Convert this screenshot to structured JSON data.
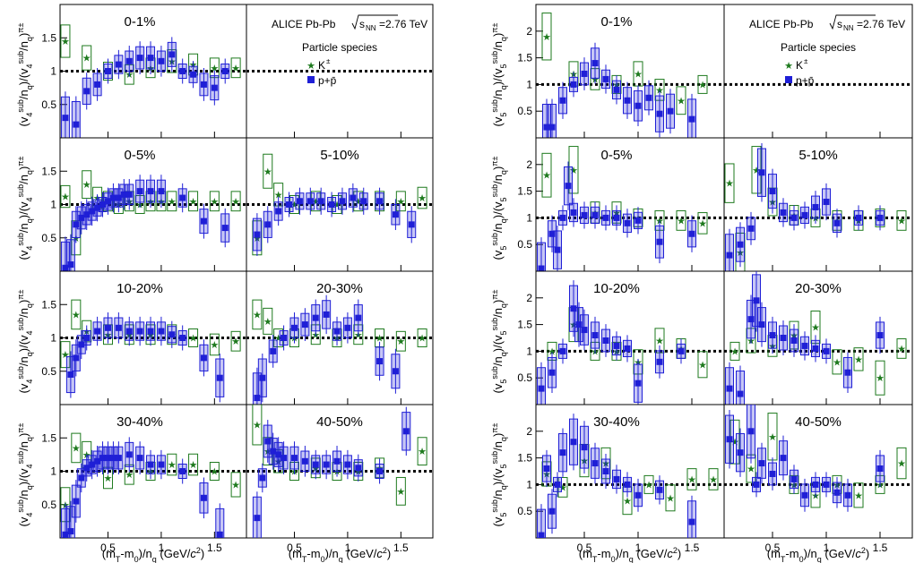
{
  "figure": {
    "header_text": "ALICE Pb-Pb",
    "energy_prefix": "s",
    "energy_sub": "NN",
    "energy_value": "=2.76 TeV",
    "legend_title": "Particle species",
    "legend_kaon": "K",
    "legend_kaon_sup": "±",
    "legend_proton": "p+p̄",
    "colors": {
      "kaon": "#1e7a1e",
      "proton": "#1f1fd6",
      "ref": "#000000"
    }
  },
  "chart_data": [
    {
      "type": "scatter",
      "harmonic": "4",
      "ylabel_html": "(v4sub/nq)/(v4sub/nq)π±",
      "xlabel": "(mT-m0)/nq (GeV/c2)",
      "xlim": [
        0.05,
        1.8
      ],
      "ylim": [
        0,
        2
      ],
      "xticks": [
        0.5,
        1,
        1.5
      ],
      "yticks": [
        0.5,
        1,
        1.5
      ],
      "panels": [
        {
          "label": "0-1%",
          "kaon": {
            "x": [
              0.1,
              0.3,
              0.5,
              0.7,
              0.9,
              1.1,
              1.3,
              1.5,
              1.7
            ],
            "y": [
              1.45,
              1.2,
              1.0,
              0.95,
              1.05,
              1.15,
              1.1,
              1.05,
              1.05
            ]
          },
          "proton": {
            "x": [
              0.1,
              0.2,
              0.3,
              0.4,
              0.5,
              0.6,
              0.7,
              0.8,
              0.9,
              1.0,
              1.1,
              1.2,
              1.3,
              1.4,
              1.5,
              1.6
            ],
            "y": [
              0.3,
              0.2,
              0.7,
              0.8,
              1.0,
              1.1,
              1.15,
              1.2,
              1.2,
              1.15,
              1.25,
              1.0,
              0.95,
              0.8,
              0.75,
              1.0
            ]
          }
        },
        {
          "label": "",
          "kaon": {
            "x": [],
            "y": []
          },
          "proton": {
            "x": [],
            "y": []
          }
        },
        {
          "label": "0-5%",
          "kaon": {
            "x": [
              0.1,
              0.2,
              0.3,
              0.4,
              0.5,
              0.6,
              0.7,
              0.8,
              0.9,
              1.0,
              1.1,
              1.3,
              1.5,
              1.7
            ],
            "y": [
              1.12,
              0.5,
              1.3,
              1.1,
              1.05,
              1.0,
              1.05,
              1.0,
              1.05,
              1.05,
              1.05,
              1.05,
              1.05,
              1.05
            ]
          },
          "proton": {
            "x": [
              0.1,
              0.15,
              0.2,
              0.25,
              0.3,
              0.35,
              0.4,
              0.45,
              0.5,
              0.55,
              0.6,
              0.65,
              0.7,
              0.8,
              0.9,
              1.0,
              1.2,
              1.4,
              1.6
            ],
            "y": [
              0.05,
              0.1,
              0.7,
              0.8,
              0.85,
              0.9,
              0.95,
              1.0,
              1.05,
              1.1,
              1.1,
              1.15,
              1.15,
              1.2,
              1.2,
              1.2,
              1.1,
              0.75,
              0.65
            ]
          }
        },
        {
          "label": "5-10%",
          "kaon": {
            "x": [
              0.15,
              0.25,
              0.35,
              0.5,
              0.7,
              0.9,
              1.1,
              1.3,
              1.5,
              1.7
            ],
            "y": [
              0.5,
              1.5,
              1.15,
              1.0,
              1.05,
              1.0,
              1.05,
              1.05,
              1.05,
              1.1
            ]
          },
          "proton": {
            "x": [
              0.15,
              0.25,
              0.35,
              0.45,
              0.55,
              0.65,
              0.75,
              0.85,
              0.95,
              1.05,
              1.15,
              1.3,
              1.45,
              1.6
            ],
            "y": [
              0.55,
              0.7,
              0.9,
              1.0,
              1.05,
              1.05,
              1.05,
              1.0,
              1.05,
              1.1,
              1.05,
              1.05,
              0.85,
              0.7
            ]
          }
        },
        {
          "label": "10-20%",
          "kaon": {
            "x": [
              0.1,
              0.2,
              0.3,
              0.5,
              0.7,
              0.9,
              1.1,
              1.3,
              1.5,
              1.7
            ],
            "y": [
              0.75,
              1.35,
              1.1,
              1.05,
              1.05,
              1.05,
              1.05,
              1.0,
              0.9,
              0.95
            ]
          },
          "proton": {
            "x": [
              0.15,
              0.2,
              0.25,
              0.3,
              0.4,
              0.5,
              0.6,
              0.7,
              0.8,
              0.9,
              1.0,
              1.1,
              1.2,
              1.4,
              1.55
            ],
            "y": [
              0.45,
              0.7,
              0.9,
              1.0,
              1.1,
              1.15,
              1.15,
              1.1,
              1.1,
              1.1,
              1.1,
              1.05,
              1.0,
              0.7,
              0.4
            ]
          }
        },
        {
          "label": "20-30%",
          "kaon": {
            "x": [
              0.15,
              0.25,
              0.35,
              0.5,
              0.7,
              0.9,
              1.1,
              1.3,
              1.5,
              1.7
            ],
            "y": [
              1.35,
              1.25,
              1.0,
              1.0,
              1.05,
              1.0,
              1.05,
              1.0,
              0.95,
              1.0
            ]
          },
          "proton": {
            "x": [
              0.15,
              0.2,
              0.3,
              0.4,
              0.5,
              0.6,
              0.7,
              0.8,
              0.9,
              1.0,
              1.1,
              1.3,
              1.45
            ],
            "y": [
              0.1,
              0.4,
              0.8,
              1.0,
              1.15,
              1.2,
              1.3,
              1.35,
              1.1,
              1.15,
              1.3,
              0.65,
              0.5
            ]
          }
        },
        {
          "label": "30-40%",
          "kaon": {
            "x": [
              0.1,
              0.2,
              0.3,
              0.5,
              0.7,
              0.9,
              1.1,
              1.3,
              1.5,
              1.7
            ],
            "y": [
              0.5,
              1.35,
              1.25,
              0.9,
              0.95,
              1.0,
              1.1,
              1.1,
              1.0,
              0.8
            ]
          },
          "proton": {
            "x": [
              0.1,
              0.15,
              0.2,
              0.25,
              0.3,
              0.35,
              0.4,
              0.45,
              0.5,
              0.55,
              0.6,
              0.7,
              0.8,
              0.9,
              1.0,
              1.2,
              1.4,
              1.55
            ],
            "y": [
              0.05,
              0.1,
              0.55,
              0.9,
              1.05,
              1.1,
              1.15,
              1.2,
              1.2,
              1.2,
              1.2,
              1.25,
              1.2,
              1.1,
              1.1,
              1.0,
              0.6,
              0.05
            ]
          }
        },
        {
          "label": "40-50%",
          "kaon": {
            "x": [
              0.15,
              0.25,
              0.35,
              0.5,
              0.7,
              0.9,
              1.1,
              1.3,
              1.5,
              1.7
            ],
            "y": [
              1.7,
              1.3,
              1.15,
              1.0,
              1.05,
              1.0,
              1.0,
              1.05,
              0.7,
              1.3
            ]
          },
          "proton": {
            "x": [
              0.15,
              0.2,
              0.25,
              0.3,
              0.35,
              0.4,
              0.5,
              0.6,
              0.7,
              0.8,
              0.9,
              1.0,
              1.1,
              1.3,
              1.55
            ],
            "y": [
              0.3,
              0.9,
              1.45,
              1.3,
              1.25,
              1.2,
              1.2,
              1.15,
              1.1,
              1.1,
              1.15,
              1.1,
              1.05,
              1.0,
              1.6
            ]
          }
        }
      ]
    },
    {
      "type": "scatter",
      "harmonic": "5",
      "ylabel_html": "(v5sub/nq)/(v5sub/nq)π±",
      "xlabel": "(mT-m0)/nq (GeV/c2)",
      "xlim": [
        0.05,
        1.8
      ],
      "ylim": [
        0,
        2.5
      ],
      "xticks": [
        0.5,
        1,
        1.5
      ],
      "yticks": [
        0.5,
        1,
        1.5,
        2
      ],
      "panels": [
        {
          "label": "0-1%",
          "kaon": {
            "x": [
              0.15,
              0.4,
              0.6,
              0.8,
              1.0,
              1.2,
              1.4,
              1.6
            ],
            "y": [
              1.9,
              1.2,
              1.1,
              1.0,
              1.2,
              0.9,
              0.7,
              1.0
            ]
          },
          "proton": {
            "x": [
              0.15,
              0.2,
              0.3,
              0.4,
              0.5,
              0.6,
              0.7,
              0.8,
              0.9,
              1.0,
              1.1,
              1.2,
              1.3,
              1.5
            ],
            "y": [
              0.2,
              0.2,
              0.7,
              1.0,
              1.2,
              1.4,
              1.1,
              0.9,
              0.7,
              0.6,
              0.75,
              0.45,
              0.5,
              0.35
            ]
          }
        },
        {
          "label": "",
          "kaon": {
            "x": [],
            "y": []
          },
          "proton": {
            "x": [],
            "y": []
          }
        },
        {
          "label": "0-5%",
          "kaon": {
            "x": [
              0.15,
              0.4,
              0.6,
              0.8,
              1.0,
              1.2,
              1.4,
              1.6
            ],
            "y": [
              1.8,
              1.9,
              1.1,
              1.1,
              1.0,
              0.95,
              0.95,
              0.9
            ]
          },
          "proton": {
            "x": [
              0.1,
              0.2,
              0.25,
              0.3,
              0.35,
              0.4,
              0.5,
              0.6,
              0.7,
              0.8,
              0.9,
              1.0,
              1.2,
              1.5
            ],
            "y": [
              0.05,
              0.7,
              0.4,
              1.0,
              1.6,
              1.1,
              1.05,
              1.05,
              1.0,
              1.0,
              0.9,
              0.95,
              0.55,
              0.7
            ]
          }
        },
        {
          "label": "5-10%",
          "kaon": {
            "x": [
              0.1,
              0.2,
              0.35,
              0.5,
              0.7,
              0.9,
              1.1,
              1.3,
              1.5,
              1.7
            ],
            "y": [
              1.65,
              0.35,
              1.9,
              1.3,
              1.05,
              1.0,
              0.95,
              0.95,
              1.0,
              0.95
            ]
          },
          "proton": {
            "x": [
              0.1,
              0.2,
              0.3,
              0.4,
              0.5,
              0.6,
              0.7,
              0.8,
              0.9,
              1.0,
              1.1,
              1.3,
              1.5
            ],
            "y": [
              0.3,
              0.5,
              0.8,
              1.85,
              1.5,
              1.1,
              1.0,
              1.05,
              1.2,
              1.3,
              0.9,
              1.0,
              1.0
            ]
          }
        },
        {
          "label": "10-20%",
          "kaon": {
            "x": [
              0.2,
              0.4,
              0.6,
              0.8,
              1.0,
              1.2,
              1.4,
              1.6
            ],
            "y": [
              1.0,
              1.5,
              1.0,
              1.0,
              0.8,
              1.2,
              1.05,
              0.75
            ]
          },
          "proton": {
            "x": [
              0.1,
              0.2,
              0.3,
              0.4,
              0.45,
              0.5,
              0.6,
              0.7,
              0.8,
              0.9,
              1.0,
              1.2,
              1.4
            ],
            "y": [
              0.3,
              0.6,
              1.0,
              1.8,
              1.5,
              1.4,
              1.3,
              1.2,
              1.1,
              1.05,
              0.4,
              0.8,
              1.0
            ]
          }
        },
        {
          "label": "20-30%",
          "kaon": {
            "x": [
              0.15,
              0.3,
              0.5,
              0.7,
              0.9,
              1.1,
              1.3,
              1.5,
              1.7
            ],
            "y": [
              1.0,
              1.2,
              1.1,
              1.3,
              1.45,
              0.8,
              0.85,
              0.5,
              1.05
            ]
          },
          "proton": {
            "x": [
              0.1,
              0.2,
              0.3,
              0.35,
              0.4,
              0.5,
              0.6,
              0.7,
              0.8,
              0.9,
              1.0,
              1.2,
              1.5
            ],
            "y": [
              0.3,
              0.2,
              1.6,
              1.95,
              1.5,
              1.3,
              1.25,
              1.2,
              1.1,
              1.05,
              1.0,
              0.6,
              1.3
            ]
          }
        },
        {
          "label": "30-40%",
          "kaon": {
            "x": [
              0.15,
              0.3,
              0.5,
              0.7,
              0.9,
              1.1,
              1.3,
              1.5,
              1.7
            ],
            "y": [
              1.2,
              0.95,
              1.45,
              1.4,
              0.7,
              1.0,
              0.75,
              1.1,
              1.1
            ]
          },
          "proton": {
            "x": [
              0.1,
              0.15,
              0.2,
              0.25,
              0.3,
              0.4,
              0.5,
              0.6,
              0.7,
              0.8,
              0.9,
              1.0,
              1.2,
              1.5
            ],
            "y": [
              0.05,
              1.3,
              0.5,
              1.0,
              1.6,
              1.8,
              1.7,
              1.4,
              1.25,
              1.1,
              1.0,
              0.8,
              0.9,
              0.3
            ]
          }
        },
        {
          "label": "40-50%",
          "kaon": {
            "x": [
              0.15,
              0.3,
              0.5,
              0.7,
              0.9,
              1.1,
              1.3,
              1.5,
              1.7
            ],
            "y": [
              1.8,
              1.3,
              1.9,
              1.0,
              0.8,
              1.0,
              0.8,
              1.0,
              1.4
            ]
          },
          "proton": {
            "x": [
              0.1,
              0.2,
              0.3,
              0.35,
              0.4,
              0.5,
              0.6,
              0.7,
              0.8,
              0.9,
              1.0,
              1.1,
              1.2,
              1.5
            ],
            "y": [
              1.85,
              1.6,
              2.0,
              1.0,
              1.4,
              1.2,
              1.5,
              1.1,
              0.8,
              1.0,
              1.0,
              0.85,
              0.8,
              1.3
            ]
          }
        }
      ]
    }
  ]
}
